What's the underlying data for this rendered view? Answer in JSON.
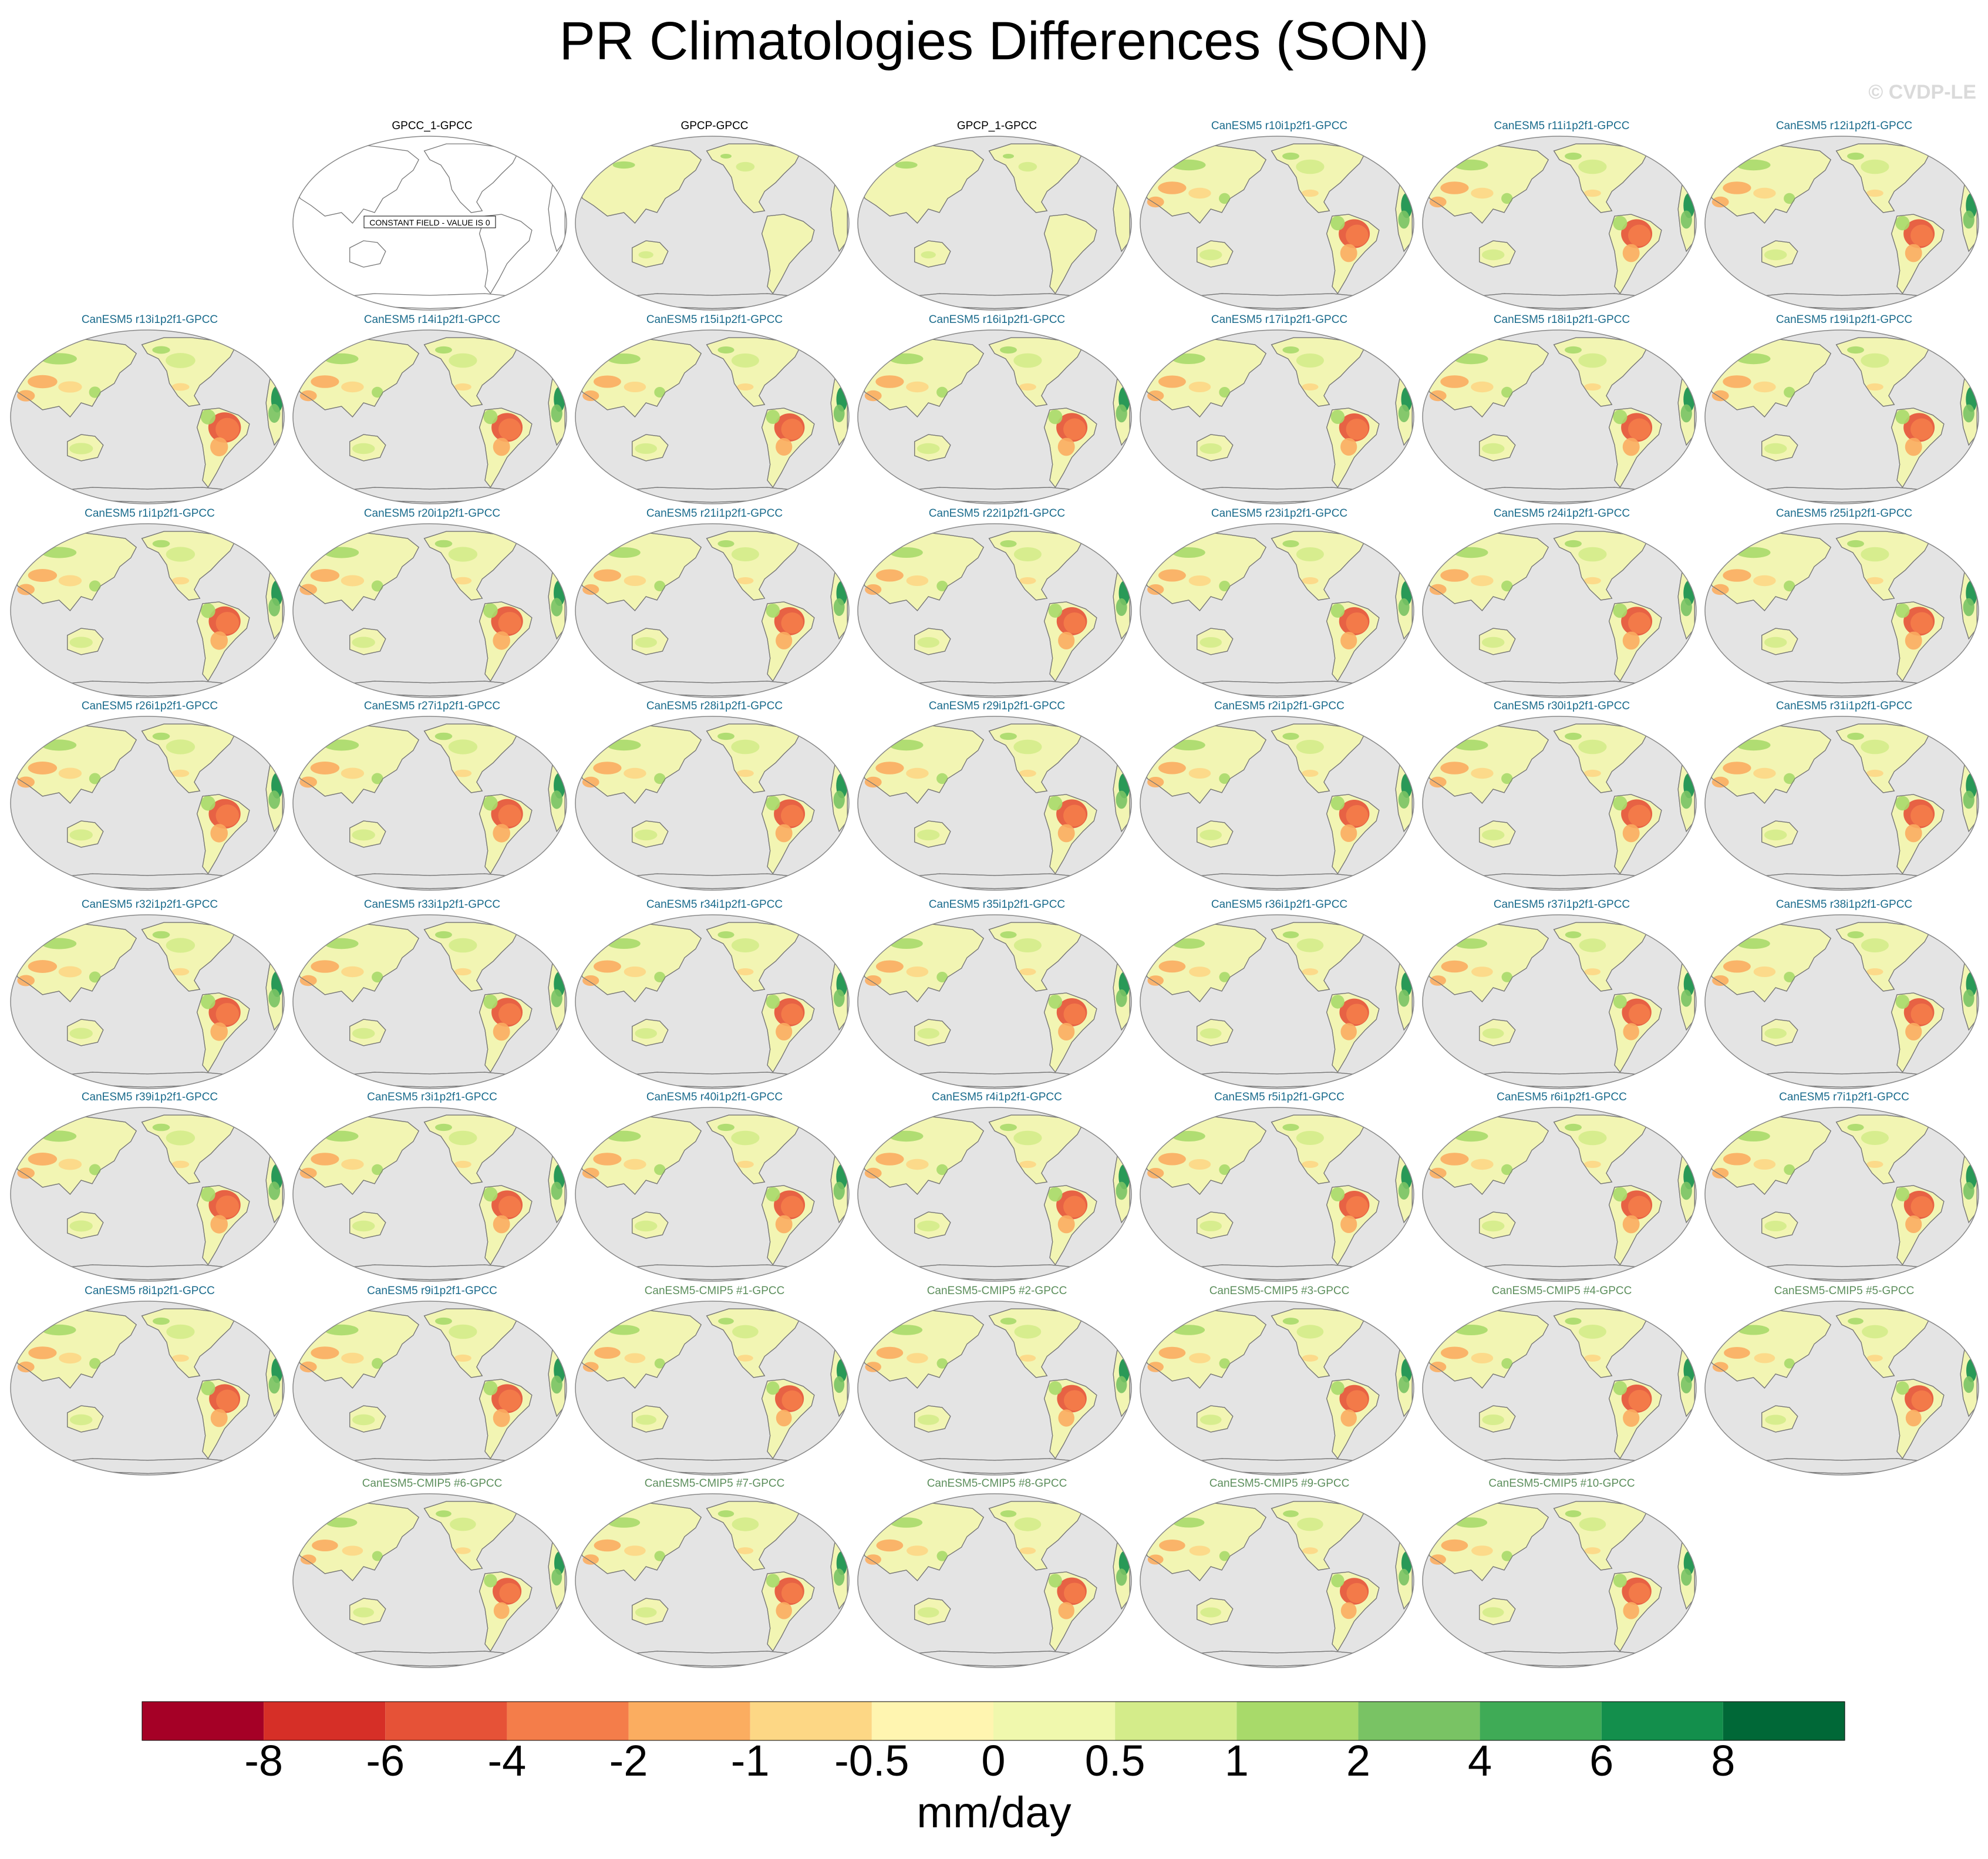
{
  "title": "PR Climatologies Differences (SON)",
  "watermark": "© CVDP-LE",
  "panels": [
    {
      "label": "GPCC_1-GPCC",
      "kind": "obs",
      "constant": true,
      "constant_text": "CONSTANT FIELD - VALUE IS 0"
    },
    {
      "label": "GPCP-GPCC",
      "kind": "obs",
      "intensity": 0.15
    },
    {
      "label": "GPCP_1-GPCC",
      "kind": "obs",
      "intensity": 0.15
    },
    {
      "label": "CanESM5 r10i1p2f1-GPCC",
      "kind": "le",
      "intensity": 0.85
    },
    {
      "label": "CanESM5 r11i1p2f1-GPCC",
      "kind": "le",
      "intensity": 0.85
    },
    {
      "label": "CanESM5 r12i1p2f1-GPCC",
      "kind": "le",
      "intensity": 0.85
    },
    {
      "label": "CanESM5 r13i1p2f1-GPCC",
      "kind": "le",
      "intensity": 0.95
    },
    {
      "label": "CanESM5 r14i1p2f1-GPCC",
      "kind": "le",
      "intensity": 0.85
    },
    {
      "label": "CanESM5 r15i1p2f1-GPCC",
      "kind": "le",
      "intensity": 0.8
    },
    {
      "label": "CanESM5 r16i1p2f1-GPCC",
      "kind": "le",
      "intensity": 0.85
    },
    {
      "label": "CanESM5 r17i1p2f1-GPCC",
      "kind": "le",
      "intensity": 0.8
    },
    {
      "label": "CanESM5 r18i1p2f1-GPCC",
      "kind": "le",
      "intensity": 0.85
    },
    {
      "label": "CanESM5 r19i1p2f1-GPCC",
      "kind": "le",
      "intensity": 0.85
    },
    {
      "label": "CanESM5 r1i1p2f1-GPCC",
      "kind": "le",
      "intensity": 0.9
    },
    {
      "label": "CanESM5 r20i1p2f1-GPCC",
      "kind": "le",
      "intensity": 0.9
    },
    {
      "label": "CanESM5 r21i1p2f1-GPCC",
      "kind": "le",
      "intensity": 0.8
    },
    {
      "label": "CanESM5 r22i1p2f1-GPCC",
      "kind": "le",
      "intensity": 0.8
    },
    {
      "label": "CanESM5 r23i1p2f1-GPCC",
      "kind": "le",
      "intensity": 0.8
    },
    {
      "label": "CanESM5 r24i1p2f1-GPCC",
      "kind": "le",
      "intensity": 0.85
    },
    {
      "label": "CanESM5 r25i1p2f1-GPCC",
      "kind": "le",
      "intensity": 0.85
    },
    {
      "label": "CanESM5 r26i1p2f1-GPCC",
      "kind": "le",
      "intensity": 0.9
    },
    {
      "label": "CanESM5 r27i1p2f1-GPCC",
      "kind": "le",
      "intensity": 0.9
    },
    {
      "label": "CanESM5 r28i1p2f1-GPCC",
      "kind": "le",
      "intensity": 0.85
    },
    {
      "label": "CanESM5 r29i1p2f1-GPCC",
      "kind": "le",
      "intensity": 0.85
    },
    {
      "label": "CanESM5 r2i1p2f1-GPCC",
      "kind": "le",
      "intensity": 0.8
    },
    {
      "label": "CanESM5 r30i1p2f1-GPCC",
      "kind": "le",
      "intensity": 0.85
    },
    {
      "label": "CanESM5 r31i1p2f1-GPCC",
      "kind": "le",
      "intensity": 0.85
    },
    {
      "label": "CanESM5 r32i1p2f1-GPCC",
      "kind": "le",
      "intensity": 0.9
    },
    {
      "label": "CanESM5 r33i1p2f1-GPCC",
      "kind": "le",
      "intensity": 0.85
    },
    {
      "label": "CanESM5 r34i1p2f1-GPCC",
      "kind": "le",
      "intensity": 0.8
    },
    {
      "label": "CanESM5 r35i1p2f1-GPCC",
      "kind": "le",
      "intensity": 0.8
    },
    {
      "label": "CanESM5 r36i1p2f1-GPCC",
      "kind": "le",
      "intensity": 0.75
    },
    {
      "label": "CanESM5 r37i1p2f1-GPCC",
      "kind": "le",
      "intensity": 0.75
    },
    {
      "label": "CanESM5 r38i1p2f1-GPCC",
      "kind": "le",
      "intensity": 0.8
    },
    {
      "label": "CanESM5 r39i1p2f1-GPCC",
      "kind": "le",
      "intensity": 0.9
    },
    {
      "label": "CanESM5 r3i1p2f1-GPCC",
      "kind": "le",
      "intensity": 0.85
    },
    {
      "label": "CanESM5 r40i1p2f1-GPCC",
      "kind": "le",
      "intensity": 0.85
    },
    {
      "label": "CanESM5 r4i1p2f1-GPCC",
      "kind": "le",
      "intensity": 0.85
    },
    {
      "label": "CanESM5 r5i1p2f1-GPCC",
      "kind": "le",
      "intensity": 0.8
    },
    {
      "label": "CanESM5 r6i1p2f1-GPCC",
      "kind": "le",
      "intensity": 0.85
    },
    {
      "label": "CanESM5 r7i1p2f1-GPCC",
      "kind": "le",
      "intensity": 0.8
    },
    {
      "label": "CanESM5 r8i1p2f1-GPCC",
      "kind": "le",
      "intensity": 0.85
    },
    {
      "label": "CanESM5 r9i1p2f1-GPCC",
      "kind": "le",
      "intensity": 0.85
    },
    {
      "label": "CanESM5-CMIP5 #1-GPCC",
      "kind": "cmip",
      "intensity": 0.7
    },
    {
      "label": "CanESM5-CMIP5 #2-GPCC",
      "kind": "cmip",
      "intensity": 0.75
    },
    {
      "label": "CanESM5-CMIP5 #3-GPCC",
      "kind": "cmip",
      "intensity": 0.75
    },
    {
      "label": "CanESM5-CMIP5 #4-GPCC",
      "kind": "cmip",
      "intensity": 0.8
    },
    {
      "label": "CanESM5-CMIP5 #5-GPCC",
      "kind": "cmip",
      "intensity": 0.7
    },
    {
      "label": "CanESM5-CMIP5 #6-GPCC",
      "kind": "cmip",
      "intensity": 0.7
    },
    {
      "label": "CanESM5-CMIP5 #7-GPCC",
      "kind": "cmip",
      "intensity": 0.75
    },
    {
      "label": "CanESM5-CMIP5 #8-GPCC",
      "kind": "cmip",
      "intensity": 0.75
    },
    {
      "label": "CanESM5-CMIP5 #9-GPCC",
      "kind": "cmip",
      "intensity": 0.7
    },
    {
      "label": "CanESM5-CMIP5 #10-GPCC",
      "kind": "cmip",
      "intensity": 0.75
    }
  ],
  "colorbar": {
    "units": "mm/day",
    "tick_labels": [
      "-8",
      "-6",
      "-4",
      "-2",
      "-1",
      "-0.5",
      "0",
      "0.5",
      "1",
      "2",
      "4",
      "6",
      "8"
    ],
    "colors": [
      "#a50026",
      "#d62f27",
      "#e65237",
      "#f47d4a",
      "#fbad60",
      "#fdd785",
      "#fff5b0",
      "#f0f8ad",
      "#d4ec8a",
      "#a8da6a",
      "#79c364",
      "#3fab56",
      "#138f4c",
      "#006837"
    ]
  },
  "map_colors": {
    "ocean": "#e4e4e4",
    "coast": "#777777",
    "land_base": "#f2f5b3",
    "border": "#888888"
  }
}
